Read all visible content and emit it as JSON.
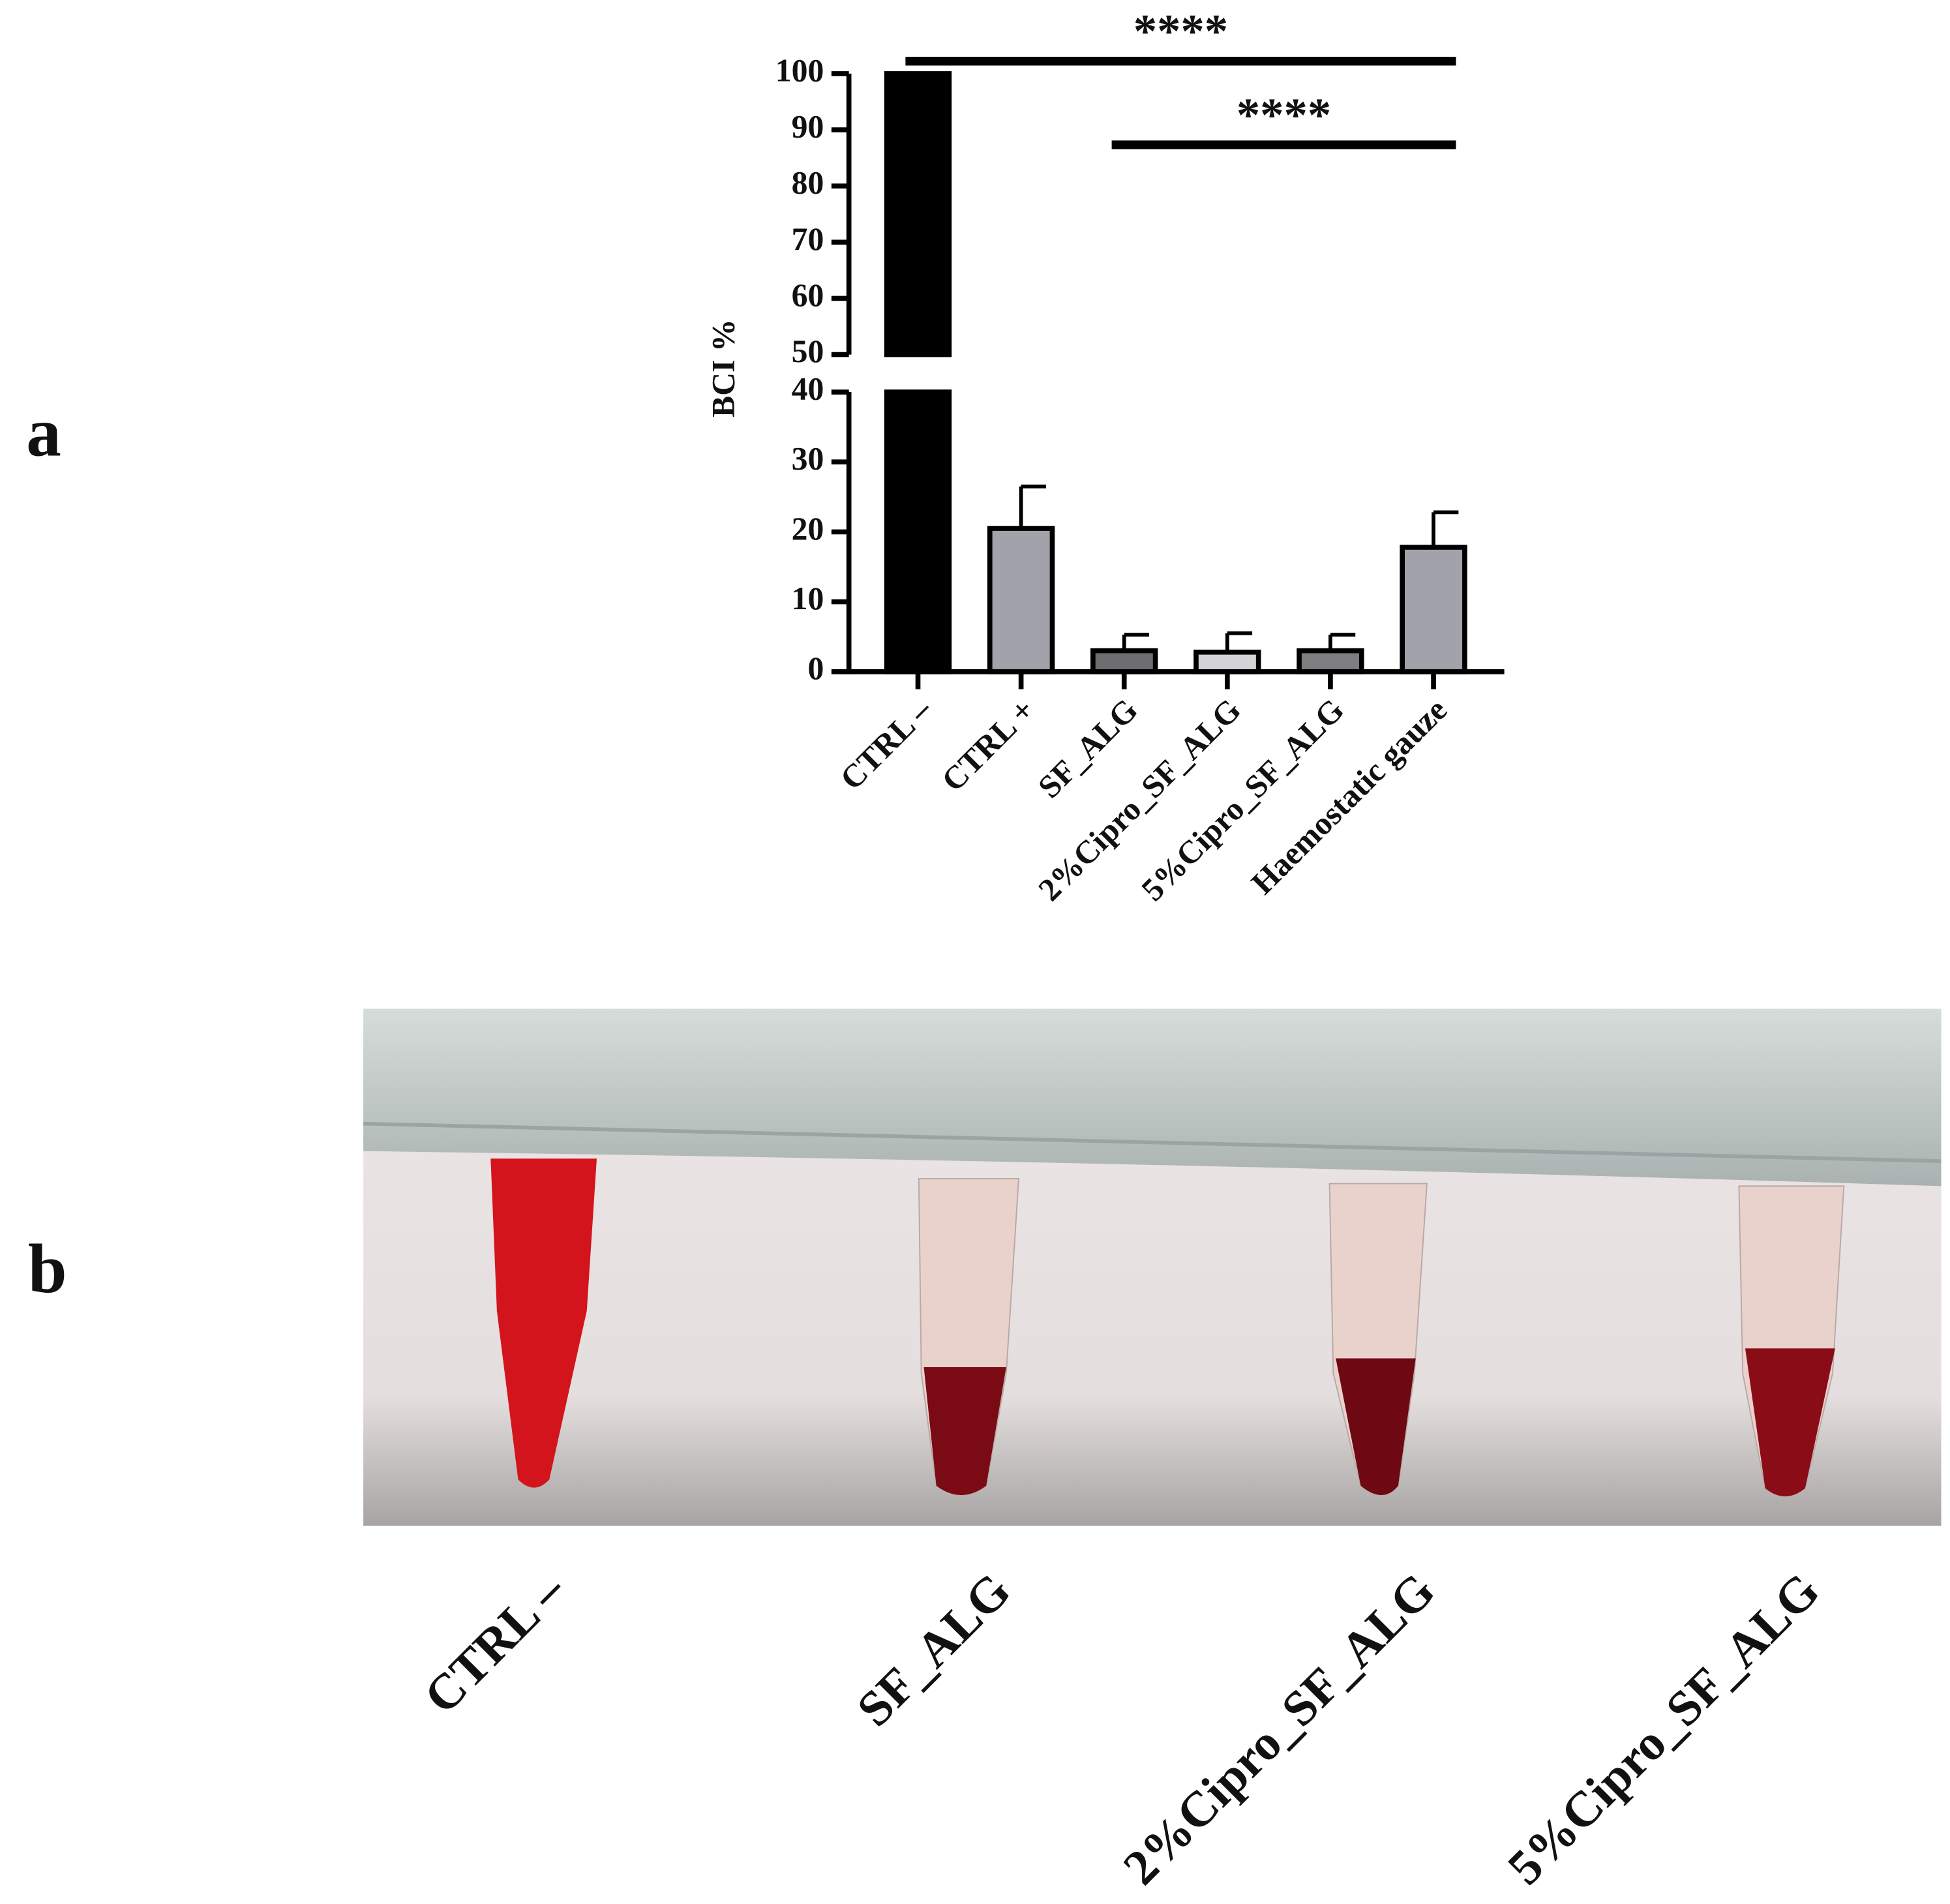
{
  "panel_labels": [
    "a",
    "b"
  ],
  "chart_data": {
    "type": "bar",
    "ylabel": "BCI %",
    "categories": [
      "CTRL –",
      "CTRL +",
      "SF_ALG",
      "2%Cipro_SF_ALG",
      "5%Cipro_SF_ALG",
      "Haemostatic gauze"
    ],
    "values": [
      100,
      20.5,
      3,
      2.8,
      3,
      17.8
    ],
    "errors": [
      0,
      6,
      2.3,
      2.7,
      2.3,
      5
    ],
    "colors": [
      "#000000",
      "#a2a2aa",
      "#6e6e70",
      "#d4d4d6",
      "#7e7e80",
      "#a2a2aa"
    ],
    "ylim": [
      0,
      100
    ],
    "y_break": [
      40,
      50
    ],
    "yticks": [
      0,
      10,
      20,
      30,
      40,
      50,
      60,
      70,
      80,
      90,
      100
    ],
    "annotations": [
      {
        "text": "****",
        "from": 0,
        "to": 5
      },
      {
        "text": "****",
        "from": 2,
        "to": 5
      }
    ]
  },
  "photo_labels": [
    "CTRL –",
    "SF_ALG",
    "2%Cipro_SF_ALG",
    "5%Cipro_SF_ALG"
  ]
}
